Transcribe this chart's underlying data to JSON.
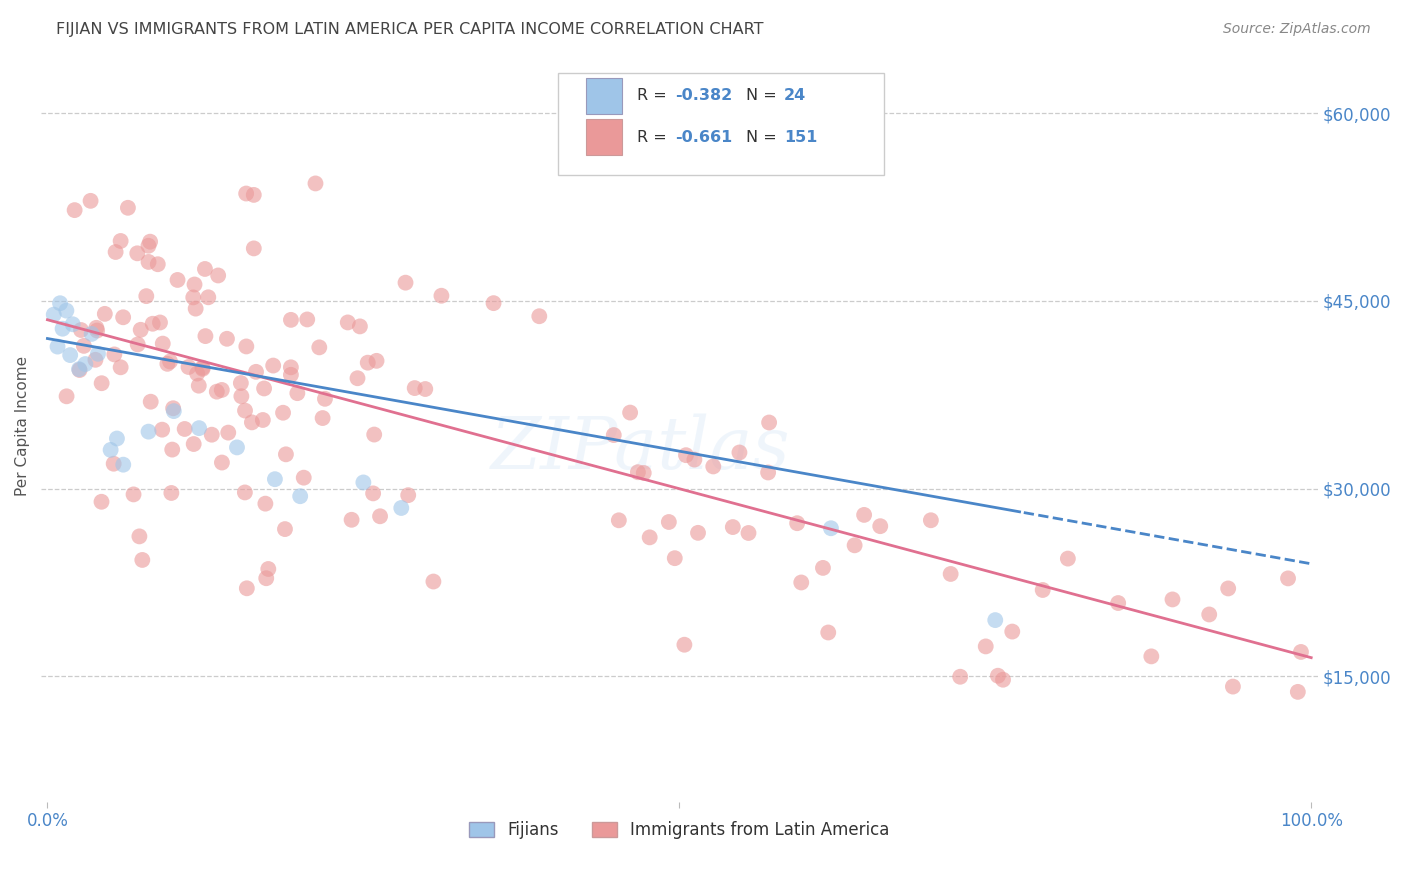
{
  "title": "FIJIAN VS IMMIGRANTS FROM LATIN AMERICA PER CAPITA INCOME CORRELATION CHART",
  "source": "Source: ZipAtlas.com",
  "ylabel": "Per Capita Income",
  "y_ticks": [
    15000,
    30000,
    45000,
    60000
  ],
  "y_tick_labels": [
    "$15,000",
    "$30,000",
    "$45,000",
    "$60,000"
  ],
  "y_min": 5000,
  "y_max": 65000,
  "x_min": -0.005,
  "x_max": 1.005,
  "legend_label1": "Fijians",
  "legend_label2": "Immigrants from Latin America",
  "blue_color": "#9fc5e8",
  "pink_color": "#ea9999",
  "blue_line_color": "#4a86c8",
  "pink_line_color": "#e07090",
  "blue_line_solid_end": 0.77,
  "axis_color": "#4a86c8",
  "title_color": "#444444",
  "grid_color": "#cccccc",
  "background_color": "#ffffff",
  "fij_intercept": 42000,
  "fij_slope": -18000,
  "lat_intercept": 43500,
  "lat_slope": -27000,
  "watermark": "ZIPatlas",
  "watermark_color": "#aaccee",
  "watermark_alpha": 0.18
}
